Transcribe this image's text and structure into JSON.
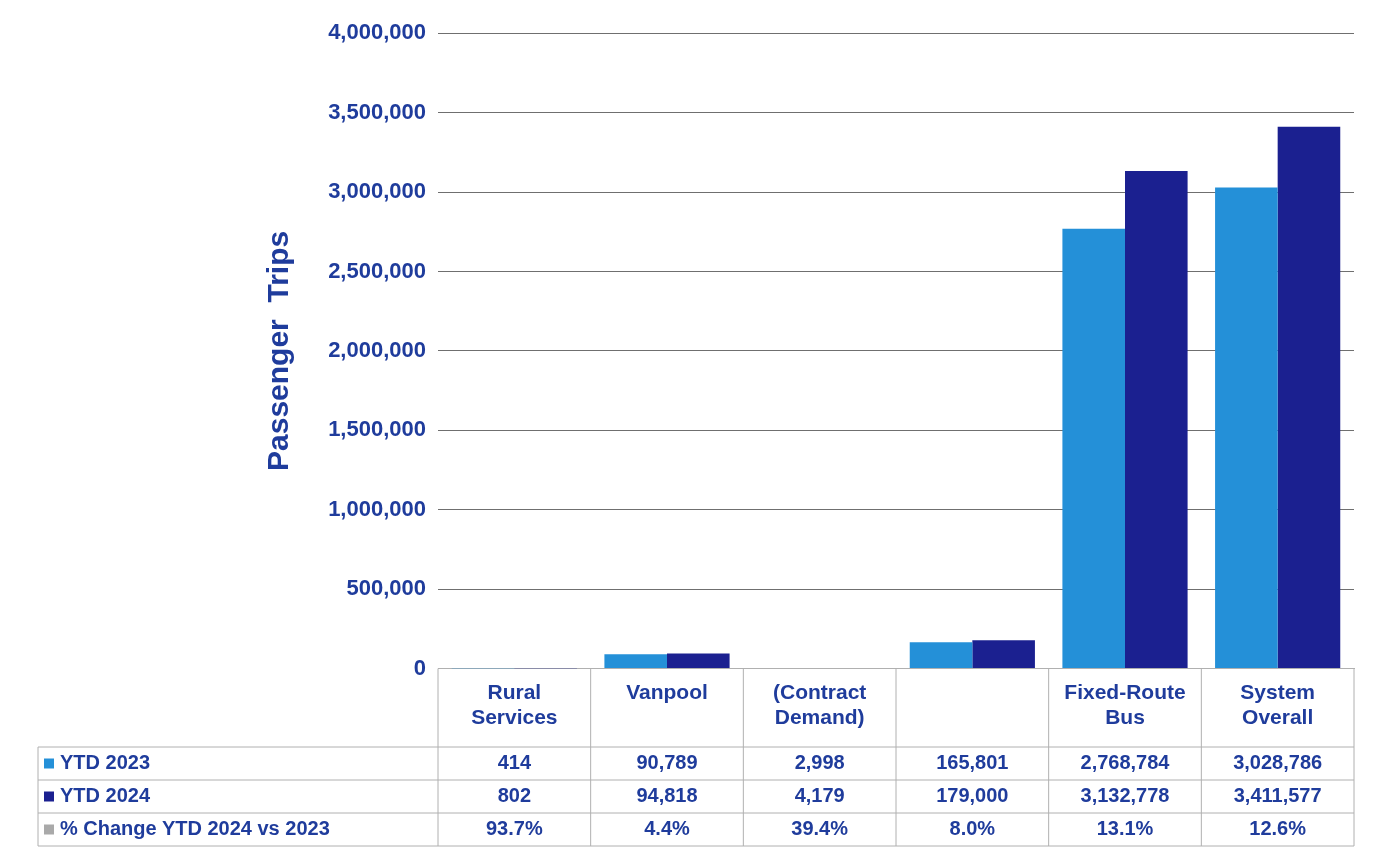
{
  "chart_data": {
    "type": "bar",
    "ylabel": "Passenger  Trips",
    "categories": [
      "Rural Services",
      "Vanpool",
      "(Contract Demand)",
      null,
      "Fixed-Route Bus",
      "System Overall"
    ],
    "series": [
      {
        "name": "YTD 2023",
        "color": "#2490d8",
        "values": [
          414,
          90789,
          2998,
          165801,
          2768784,
          3028786
        ],
        "value_labels": [
          "414",
          "90,789",
          "2,998",
          "165,801",
          "2,768,784",
          "3,028,786"
        ]
      },
      {
        "name": "YTD 2024",
        "color": "#1b2090",
        "values": [
          802,
          94818,
          4179,
          179000,
          3132778,
          3411577
        ],
        "value_labels": [
          "802",
          "94,818",
          "4,179",
          "179,000",
          "3,132,778",
          "3,411,577"
        ]
      },
      {
        "name": "% Change YTD 2024 vs 2023",
        "color": "#a9a9a9",
        "values": [
          null,
          null,
          null,
          null,
          null,
          null
        ],
        "value_labels": [
          "93.7%",
          "4.4%",
          "39.4%",
          "8.0%",
          "13.1%",
          "12.6%"
        ]
      }
    ],
    "ylim": [
      0,
      4000000
    ],
    "yticks": [
      0,
      {
        "value": 500000,
        "label": "500,000"
      },
      {
        "value": 1000000,
        "label": "1,000,000"
      },
      {
        "value": 1500000,
        "label": "1,500,000"
      },
      {
        "value": 2000000,
        "label": "2,000,000"
      },
      {
        "value": 2500000,
        "label": "2,500,000"
      },
      {
        "value": 3000000,
        "label": "3,000,000"
      },
      {
        "value": 3500000,
        "label": "3,500,000"
      },
      {
        "value": 4000000,
        "label": "4,000,000"
      }
    ],
    "grid": "y",
    "legend": "bottom left"
  }
}
